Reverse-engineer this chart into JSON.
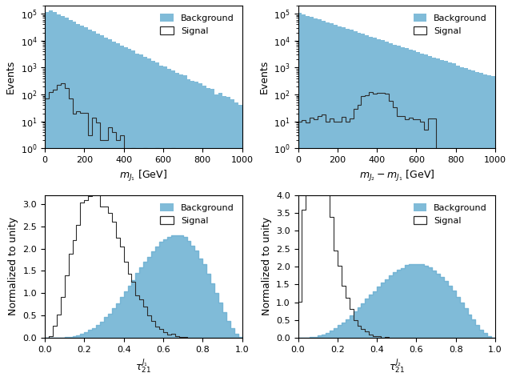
{
  "fig_width": 6.4,
  "fig_height": 4.76,
  "dpi": 100,
  "bg_color": "#ffffff",
  "fill_color": "#6aafd2",
  "fill_alpha": 0.85,
  "signal_color": "#2c2c2c",
  "top_left": {
    "xlabel": "$m_{J_1}$ [GeV]",
    "ylabel": "Events",
    "xlim": [
      0,
      1000
    ],
    "ylim_log": [
      1,
      200000.0
    ],
    "xticks": [
      0,
      200,
      400,
      600,
      800,
      1000
    ],
    "nbins": 50
  },
  "top_right": {
    "xlabel": "$m_{J_2} - m_{J_1}$ [GeV]",
    "ylabel": "Events",
    "xlim": [
      0,
      1000
    ],
    "ylim_log": [
      1,
      200000.0
    ],
    "xticks": [
      0,
      200,
      400,
      600,
      800,
      1000
    ],
    "nbins": 50
  },
  "bot_left": {
    "xlabel": "$\\tau_{21}^{J_1}$",
    "ylabel": "Normalized to unity",
    "xlim": [
      0.0,
      1.0
    ],
    "ylim": [
      0,
      3.2
    ],
    "yticks": [
      0.0,
      0.5,
      1.0,
      1.5,
      2.0,
      2.5,
      3.0
    ],
    "xticks": [
      0.0,
      0.2,
      0.4,
      0.6,
      0.8,
      1.0
    ],
    "nbins": 50,
    "bg_beta_a": 5.0,
    "bg_beta_b": 3.0,
    "sig_beta_a": 4.0,
    "sig_beta_b": 10.0
  },
  "bot_right": {
    "xlabel": "$\\tau_{21}^{J_2}$",
    "ylabel": "Normalized to unity",
    "xlim": [
      0.0,
      1.0
    ],
    "ylim": [
      0,
      4.0
    ],
    "yticks": [
      0.0,
      0.5,
      1.0,
      1.5,
      2.0,
      2.5,
      3.0,
      3.5,
      4.0
    ],
    "xticks": [
      0.0,
      0.2,
      0.4,
      0.6,
      0.8,
      1.0
    ],
    "nbins": 50,
    "bg_beta_a": 4.0,
    "bg_beta_b": 3.0,
    "sig_beta_a": 2.5,
    "sig_beta_b": 18.0
  },
  "legend_labels": [
    "Background",
    "Signal"
  ]
}
